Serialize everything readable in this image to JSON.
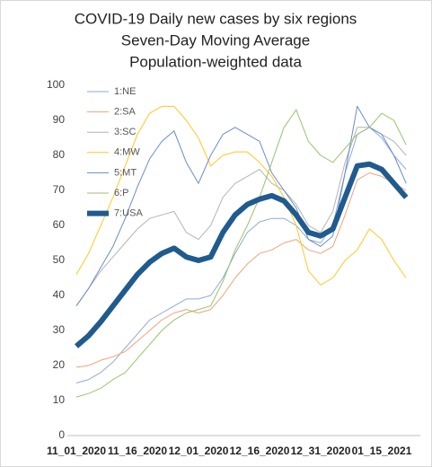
{
  "chart_data": {
    "type": "line",
    "title": [
      "COVID-19 Daily new cases by six regions",
      "Seven-Day Moving Average",
      "Population-weighted data"
    ],
    "categories": [
      "11_01_2020",
      null,
      null,
      null,
      null,
      "11_16_2020",
      null,
      null,
      null,
      null,
      "12_01_2020",
      null,
      null,
      null,
      null,
      "12_16_2020",
      null,
      null,
      null,
      null,
      "12_31_2020",
      null,
      null,
      null,
      null,
      "01_15_2021",
      null,
      null
    ],
    "ylim": [
      0,
      100
    ],
    "yticks": [
      0,
      10,
      20,
      30,
      40,
      50,
      60,
      70,
      80,
      90,
      100
    ],
    "grid": false,
    "legend": "top-left",
    "series": [
      {
        "name": "1:NE",
        "color": "#8eaad6",
        "width": 1,
        "values": [
          15,
          16,
          18,
          21,
          25,
          29,
          33,
          35,
          37,
          39,
          39,
          40,
          45,
          52,
          58,
          61,
          62,
          62,
          60,
          56,
          55,
          60,
          75,
          86,
          88,
          85,
          80,
          76
        ]
      },
      {
        "name": "2:SA",
        "color": "#eea47a",
        "width": 1,
        "values": [
          19.5,
          20,
          21.5,
          22.5,
          24,
          27,
          30,
          33,
          35,
          36,
          35,
          36,
          40,
          45,
          49,
          52,
          53,
          55,
          56,
          53,
          52,
          54,
          63,
          73,
          75,
          74,
          72,
          70
        ]
      },
      {
        "name": "3:SC",
        "color": "#b4b4b4",
        "width": 1,
        "values": [
          37,
          42,
          47,
          51,
          55,
          59,
          62,
          63,
          64,
          58,
          56,
          60,
          68,
          72,
          74,
          76,
          72,
          70,
          66,
          60,
          58,
          64,
          78,
          88,
          88,
          86,
          84,
          80
        ]
      },
      {
        "name": "4:MW",
        "color": "#ffc820",
        "width": 1,
        "values": [
          46,
          52,
          60,
          68,
          77,
          86,
          92,
          94,
          94,
          90,
          85,
          77,
          80,
          81,
          81,
          78,
          74,
          68,
          60,
          47,
          43,
          45,
          50,
          53,
          59,
          56,
          50,
          45
        ]
      },
      {
        "name": "5:MT",
        "color": "#6a8cc8",
        "width": 1,
        "values": [
          37,
          42,
          48,
          54,
          62,
          71,
          79,
          84,
          87,
          78,
          72,
          80,
          86,
          88,
          86,
          84,
          75,
          70,
          65,
          56,
          54,
          57,
          75,
          94,
          88,
          86,
          80,
          72
        ]
      },
      {
        "name": "6:P",
        "color": "#96c46a",
        "width": 1,
        "values": [
          11,
          12,
          13.5,
          16,
          18,
          22,
          26,
          30,
          33,
          35,
          36,
          37,
          44,
          53,
          60,
          68,
          78,
          88,
          93,
          84,
          80,
          78,
          82,
          86,
          88,
          92,
          90,
          83
        ]
      },
      {
        "name": "7:USA",
        "color": "#1f5b8e",
        "width": 6,
        "values": [
          25.5,
          28.5,
          32.5,
          37,
          41.5,
          46,
          49.5,
          52,
          53.5,
          51,
          50,
          51,
          58,
          63,
          66,
          67.5,
          68.5,
          67,
          63,
          58,
          57,
          59,
          68,
          77,
          77.5,
          76,
          72,
          68
        ]
      }
    ]
  }
}
